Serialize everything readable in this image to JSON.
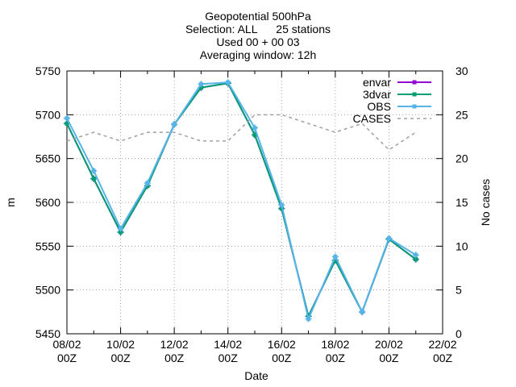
{
  "chart_data": {
    "type": "line",
    "title_lines": [
      "Geopotential 500hPa",
      "Selection: ALL      25 stations",
      "Used 00 + 00 03",
      "Averaging window: 12h"
    ],
    "xlabel": "Date",
    "ylabel": "m",
    "y2label": "No cases",
    "x_ticks": [
      {
        "top": "08/02",
        "bottom": "00Z",
        "day": 0
      },
      {
        "top": "10/02",
        "bottom": "00Z",
        "day": 2
      },
      {
        "top": "12/02",
        "bottom": "00Z",
        "day": 4
      },
      {
        "top": "14/02",
        "bottom": "00Z",
        "day": 6
      },
      {
        "top": "16/02",
        "bottom": "00Z",
        "day": 8
      },
      {
        "top": "18/02",
        "bottom": "00Z",
        "day": 10
      },
      {
        "top": "20/02",
        "bottom": "00Z",
        "day": 12
      },
      {
        "top": "22/02",
        "bottom": "00Z",
        "day": 14
      }
    ],
    "xlim": [
      0,
      14
    ],
    "ylim": [
      5450,
      5750
    ],
    "y_ticks": [
      5450,
      5500,
      5550,
      5600,
      5650,
      5700,
      5750
    ],
    "y2lim": [
      0,
      30
    ],
    "y2_ticks": [
      0,
      5,
      10,
      15,
      20,
      25,
      30
    ],
    "grid": true,
    "legend_position": "top-right",
    "series": [
      {
        "name": "envar",
        "color": "#9400d3",
        "style": "line-points",
        "axis": "y",
        "points": [
          [
            0,
            5690
          ],
          [
            1,
            5627
          ],
          [
            2,
            5566
          ],
          [
            3,
            5619
          ],
          [
            4,
            5689
          ],
          [
            5,
            5731
          ],
          [
            6,
            5736
          ],
          [
            7,
            5677
          ],
          [
            8,
            5593
          ],
          [
            9,
            5470
          ],
          [
            10,
            5534
          ],
          [
            11,
            5475
          ],
          [
            12,
            5558
          ],
          [
            13,
            5535
          ]
        ]
      },
      {
        "name": "3dvar",
        "color": "#009e73",
        "style": "line-points",
        "axis": "y",
        "points": [
          [
            0,
            5690
          ],
          [
            1,
            5627
          ],
          [
            2,
            5566
          ],
          [
            3,
            5619
          ],
          [
            4,
            5689
          ],
          [
            5,
            5731
          ],
          [
            6,
            5736
          ],
          [
            7,
            5677
          ],
          [
            8,
            5593
          ],
          [
            9,
            5470
          ],
          [
            10,
            5534
          ],
          [
            11,
            5475
          ],
          [
            12,
            5558
          ],
          [
            13,
            5535
          ]
        ]
      },
      {
        "name": "OBS",
        "color": "#56b4e9",
        "style": "line-points",
        "axis": "y",
        "points": [
          [
            0,
            5696
          ],
          [
            1,
            5636
          ],
          [
            2,
            5570
          ],
          [
            3,
            5622
          ],
          [
            4,
            5689
          ],
          [
            5,
            5735
          ],
          [
            6,
            5737
          ],
          [
            7,
            5685
          ],
          [
            8,
            5597
          ],
          [
            9,
            5467
          ],
          [
            10,
            5538
          ],
          [
            11,
            5475
          ],
          [
            12,
            5559
          ],
          [
            13,
            5540
          ]
        ]
      },
      {
        "name": "CASES",
        "color": "#a0a0a0",
        "style": "dashed",
        "axis": "y2",
        "points": [
          [
            0,
            22
          ],
          [
            1,
            23
          ],
          [
            2,
            22
          ],
          [
            3,
            23
          ],
          [
            4,
            23
          ],
          [
            5,
            22
          ],
          [
            6,
            22
          ],
          [
            7,
            25
          ],
          [
            8,
            25
          ],
          [
            9,
            24
          ],
          [
            10,
            23
          ],
          [
            11,
            24
          ],
          [
            12,
            21
          ],
          [
            13,
            23
          ]
        ]
      }
    ]
  }
}
